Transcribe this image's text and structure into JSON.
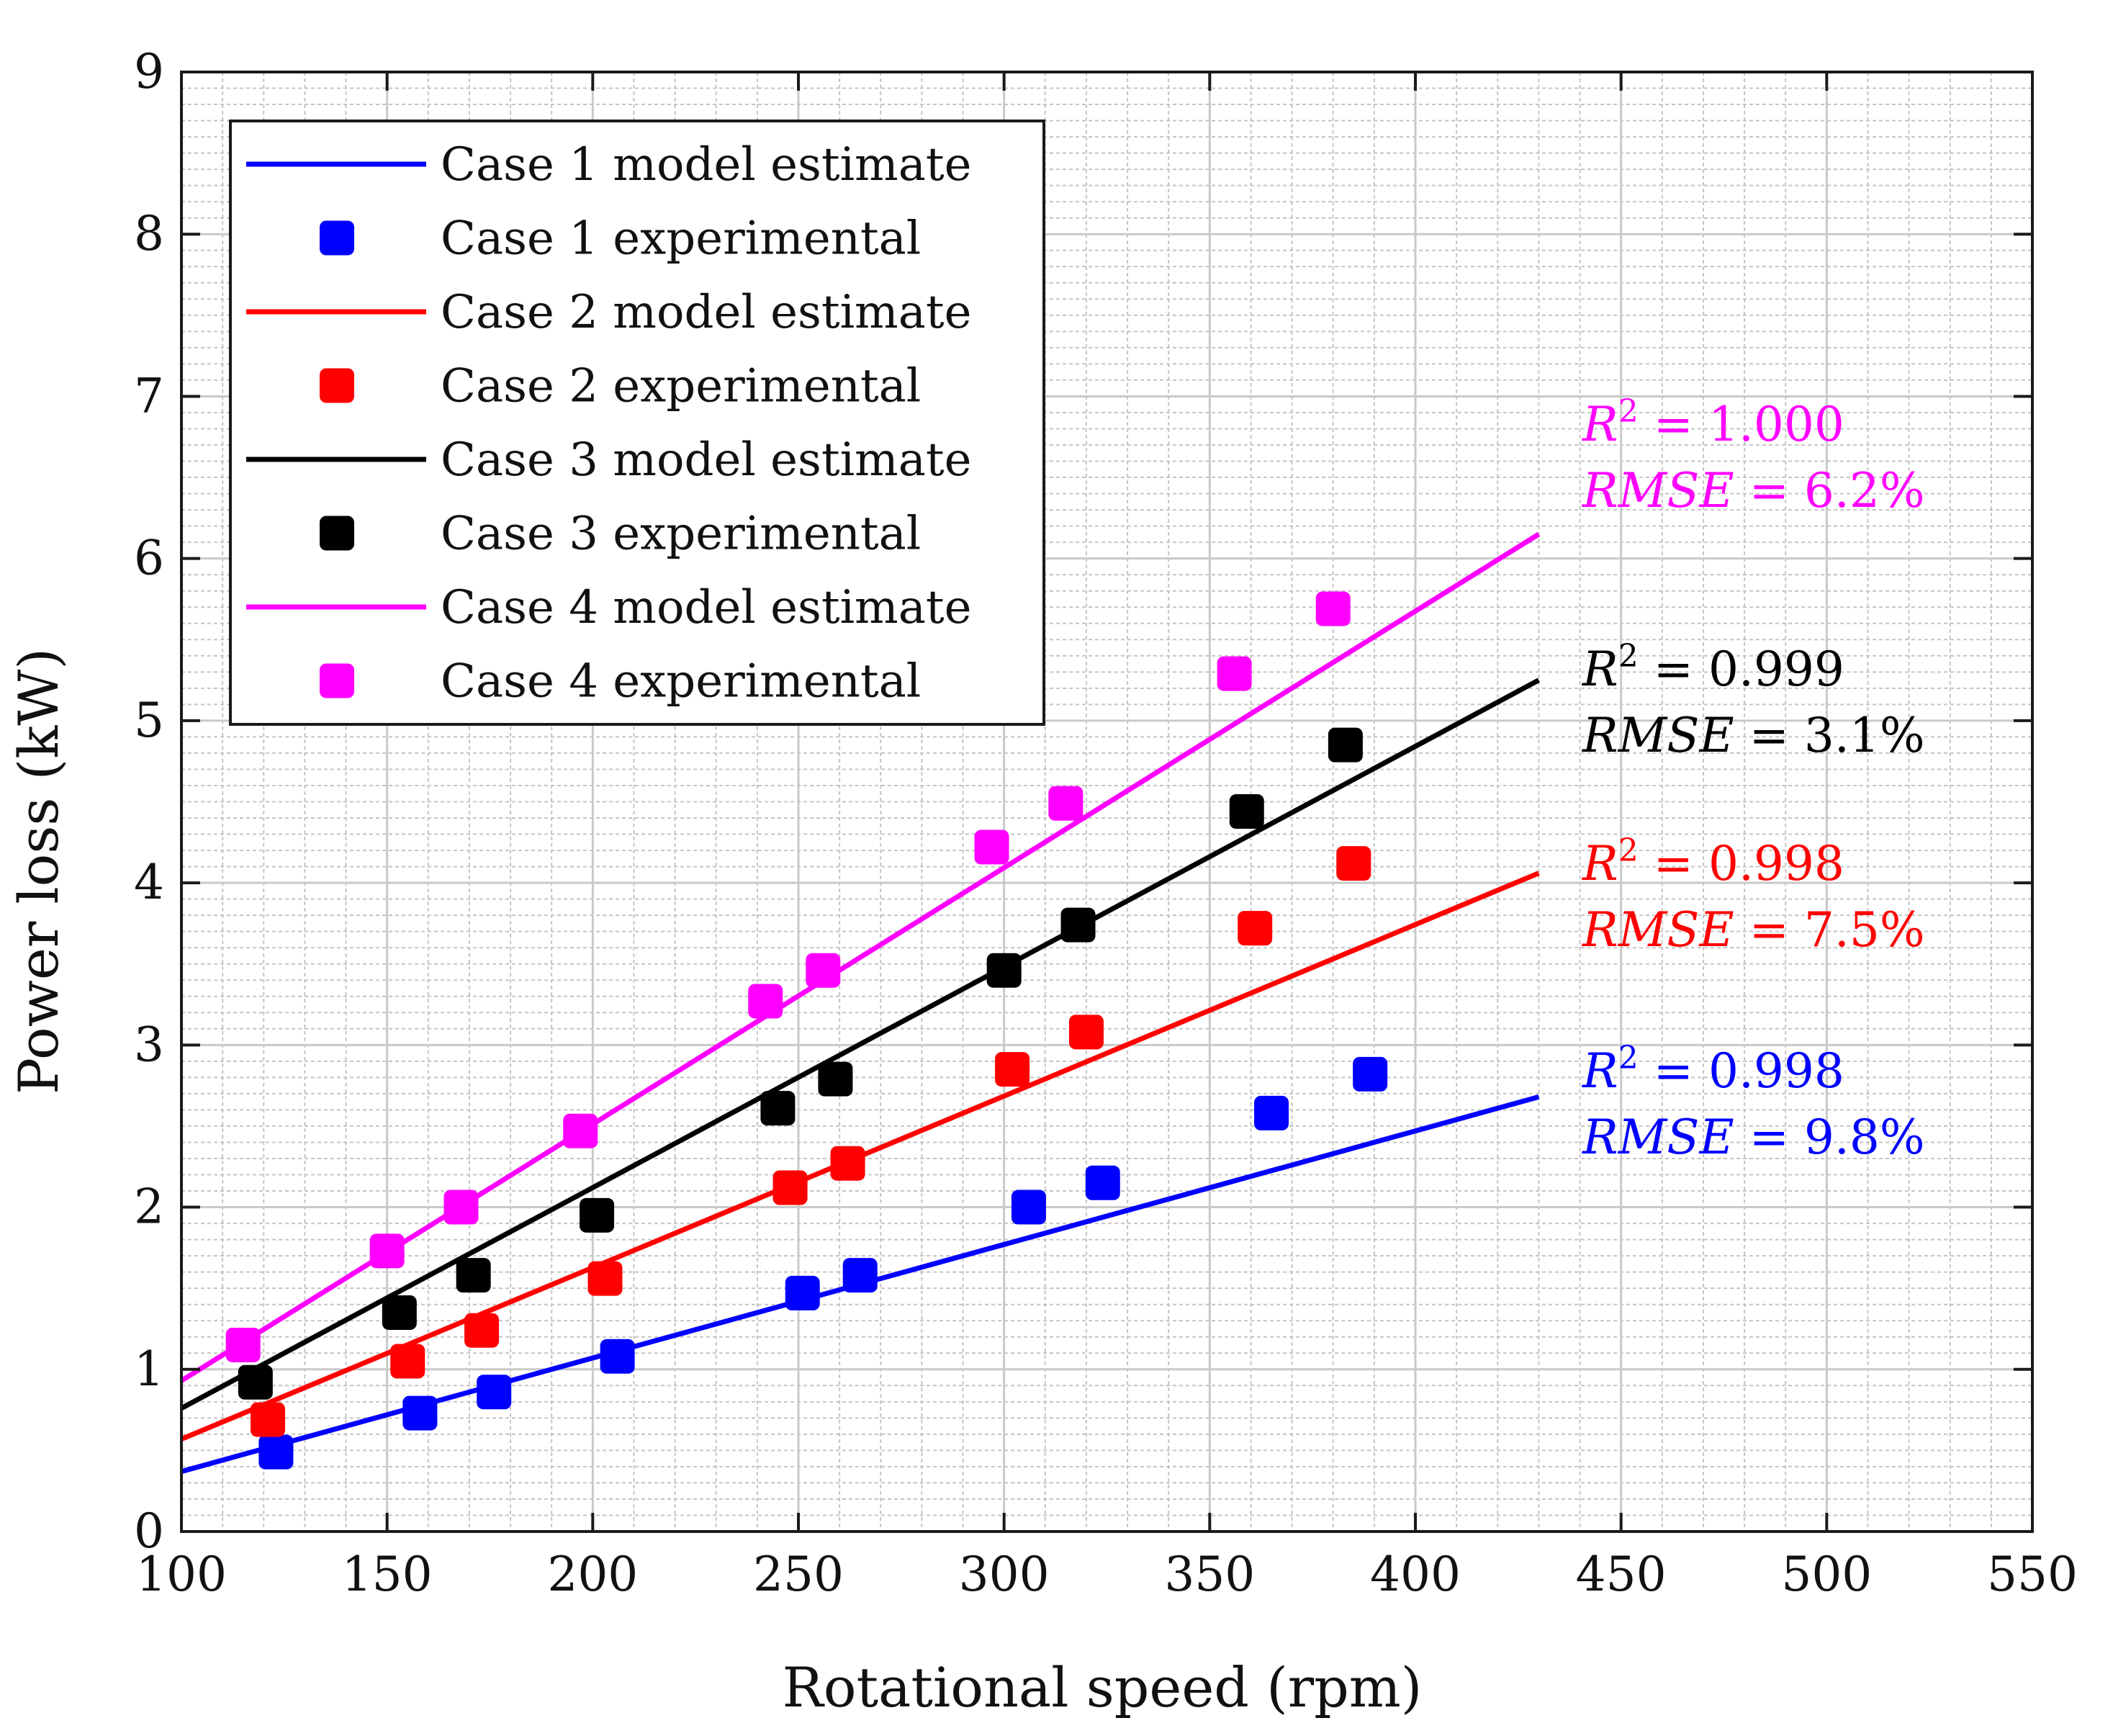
{
  "chart_data": {
    "type": "scatter",
    "title": "",
    "xlabel": "Rotational speed (rpm)",
    "ylabel": "Power loss (kW)",
    "xlim": [
      100,
      550
    ],
    "ylim": [
      0,
      9
    ],
    "xticks": [
      100,
      150,
      200,
      250,
      300,
      350,
      400,
      450,
      500,
      550
    ],
    "yticks": [
      0,
      1,
      2,
      3,
      4,
      5,
      6,
      7,
      8,
      9
    ],
    "xtick_labels": [
      "100",
      "150",
      "200",
      "250",
      "300",
      "350",
      "400",
      "450",
      "500",
      "550"
    ],
    "ytick_labels": [
      "0",
      "1",
      "2",
      "3",
      "4",
      "5",
      "6",
      "7",
      "8",
      "9"
    ],
    "grid": true,
    "legend_position": "top-left",
    "series": [
      {
        "name": "Case 1",
        "color": "#0000ff",
        "model_label": "Case 1 model estimate",
        "exp_label": "Case 1 experimental",
        "model_line": [
          [
            100,
            0.37
          ],
          [
            430,
            2.68
          ]
        ],
        "points": [
          [
            123,
            0.49
          ],
          [
            158,
            0.73
          ],
          [
            176,
            0.86
          ],
          [
            206,
            1.08
          ],
          [
            251,
            1.47
          ],
          [
            265,
            1.58
          ],
          [
            306,
            2.0
          ],
          [
            324,
            2.15
          ],
          [
            365,
            2.58
          ],
          [
            389,
            2.82
          ]
        ],
        "annotation": {
          "r2_prefix": "R",
          "r2_sup": "2",
          "r2_value": " = 0.998",
          "rmse_prefix": "RMSE",
          "rmse_value": " = 9.8%"
        }
      },
      {
        "name": "Case 2",
        "color": "#ff0000",
        "model_label": "Case 2 model estimate",
        "exp_label": "Case 2 experimental",
        "model_line": [
          [
            100,
            0.57
          ],
          [
            430,
            4.06
          ]
        ],
        "points": [
          [
            121,
            0.69
          ],
          [
            155,
            1.05
          ],
          [
            173,
            1.24
          ],
          [
            203,
            1.56
          ],
          [
            248,
            2.12
          ],
          [
            262,
            2.27
          ],
          [
            302,
            2.85
          ],
          [
            320,
            3.08
          ],
          [
            361,
            3.72
          ],
          [
            385,
            4.12
          ]
        ],
        "annotation": {
          "r2_prefix": "R",
          "r2_sup": "2",
          "r2_value": " = 0.998",
          "rmse_prefix": "RMSE",
          "rmse_value": " = 7.5%"
        }
      },
      {
        "name": "Case 3",
        "color": "#000000",
        "model_label": "Case 3 model estimate",
        "exp_label": "Case 3 experimental",
        "model_line": [
          [
            100,
            0.76
          ],
          [
            430,
            5.25
          ]
        ],
        "points": [
          [
            118,
            0.92
          ],
          [
            153,
            1.35
          ],
          [
            171,
            1.58
          ],
          [
            201,
            1.95
          ],
          [
            245,
            2.61
          ],
          [
            259,
            2.79
          ],
          [
            300,
            3.46
          ],
          [
            318,
            3.74
          ],
          [
            359,
            4.44
          ],
          [
            383,
            4.85
          ]
        ],
        "annotation": {
          "r2_prefix": "R",
          "r2_sup": "2",
          "r2_value": " = 0.999",
          "rmse_prefix": "RMSE",
          "rmse_value": " = 3.1%"
        }
      },
      {
        "name": "Case 4",
        "color": "#ff00ff",
        "model_label": "Case 4 model estimate",
        "exp_label": "Case 4 experimental",
        "model_line": [
          [
            100,
            0.93
          ],
          [
            430,
            6.15
          ]
        ],
        "points": [
          [
            115,
            1.15
          ],
          [
            150,
            1.73
          ],
          [
            168,
            2.0
          ],
          [
            197,
            2.47
          ],
          [
            242,
            3.27
          ],
          [
            256,
            3.46
          ],
          [
            297,
            4.22
          ],
          [
            315,
            4.49
          ],
          [
            356,
            5.29
          ],
          [
            380,
            5.69
          ]
        ],
        "annotation": {
          "r2_prefix": "R",
          "r2_sup": "2",
          "r2_value": " = 1.000",
          "rmse_prefix": "RMSE",
          "rmse_value": " = 6.2%"
        }
      }
    ]
  }
}
